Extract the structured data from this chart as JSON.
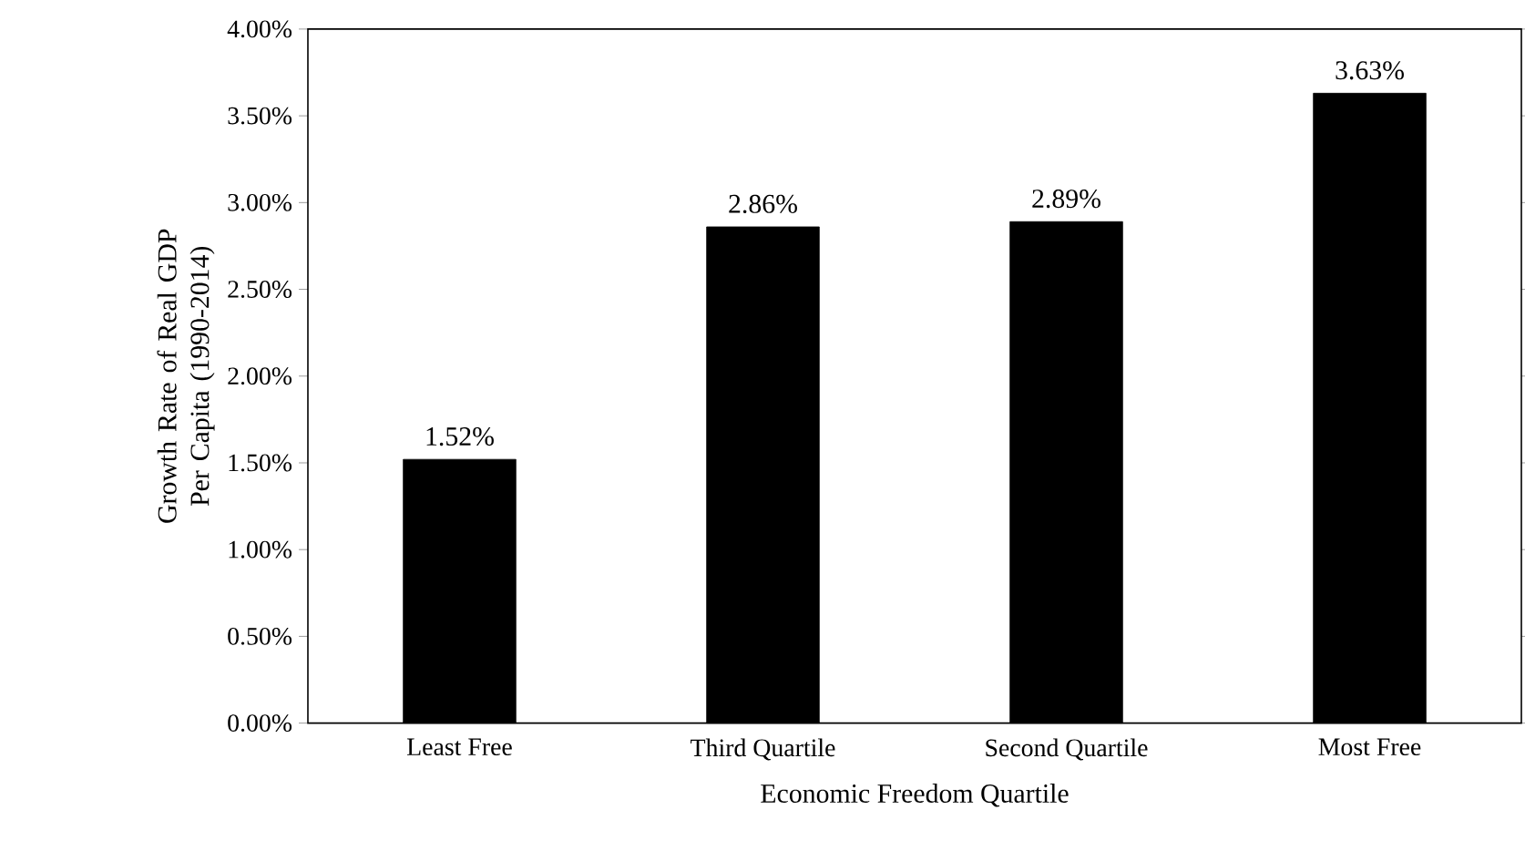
{
  "chart_data": {
    "type": "bar",
    "xlabel": "Economic Freedom Quartile",
    "ylabel": "Growth Rate of Real GDP Per Capita (1990-2014)",
    "categories": [
      "Least Free",
      "Third Quartile",
      "Second Quartile",
      "Most Free"
    ],
    "values": [
      1.52,
      2.86,
      2.89,
      3.63
    ],
    "value_labels": [
      "1.52%",
      "2.86%",
      "2.89%",
      "3.63%"
    ],
    "color": "#000000",
    "ylim": [
      0,
      4
    ],
    "yticks": [
      {
        "value": 0,
        "label": "0.00%"
      },
      {
        "value": 0.5,
        "label": "0.50%"
      },
      {
        "value": 1,
        "label": "1.00%"
      },
      {
        "value": 1.5,
        "label": "1.50%"
      },
      {
        "value": 2,
        "label": "2.00%"
      },
      {
        "value": 2.5,
        "label": "2.50%"
      },
      {
        "value": 3,
        "label": "3.00%"
      },
      {
        "value": 3.5,
        "label": "3.50%"
      },
      {
        "value": 4,
        "label": "4.00%"
      }
    ],
    "grid": false
  }
}
